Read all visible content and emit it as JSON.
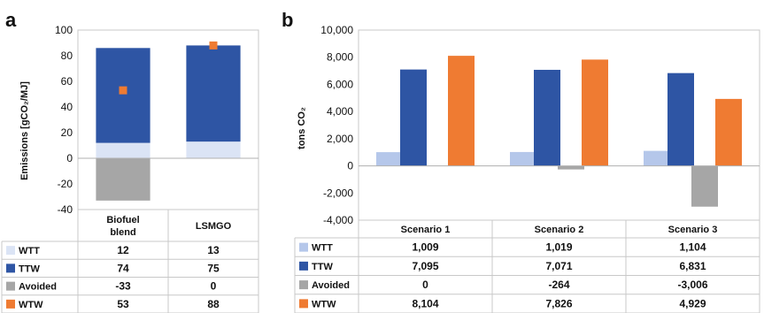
{
  "chart_data": [
    {
      "panel": "a",
      "type": "bar",
      "stacked": true,
      "ylabel": "Emissions [gCO₂/MJ]",
      "ylim": [
        -40,
        100
      ],
      "yticks": [
        -40,
        -20,
        0,
        20,
        40,
        60,
        80,
        100
      ],
      "ytick_labels": [
        "-40",
        "-20",
        "0",
        "20",
        "40",
        "60",
        "80",
        "100"
      ],
      "grid": false,
      "categories": [
        "Biofuel blend",
        "LSMGO"
      ],
      "category_lines": [
        [
          "Biofuel",
          "blend"
        ],
        [
          "LSMGO"
        ]
      ],
      "series": [
        {
          "name": "WTT",
          "kind": "bar",
          "color": "#dbe4f5",
          "values": [
            12,
            13
          ],
          "labels": [
            "12",
            "13"
          ]
        },
        {
          "name": "TTW",
          "kind": "bar",
          "color": "#2e55a4",
          "values": [
            74,
            75
          ],
          "labels": [
            "74",
            "75"
          ]
        },
        {
          "name": "Avoided",
          "kind": "bar",
          "color": "#a6a6a6",
          "values": [
            -33,
            0
          ],
          "labels": [
            "-33",
            "0"
          ]
        },
        {
          "name": "WTW",
          "kind": "marker",
          "color": "#ef7b32",
          "values": [
            53,
            88
          ],
          "labels": [
            "53",
            "88"
          ]
        }
      ]
    },
    {
      "panel": "b",
      "type": "bar",
      "stacked": false,
      "ylabel": "tons CO₂",
      "ylim": [
        -4000,
        10000
      ],
      "yticks": [
        -4000,
        -2000,
        0,
        2000,
        4000,
        6000,
        8000,
        10000
      ],
      "ytick_labels": [
        "-4,000",
        "-2,000",
        "0",
        "2,000",
        "4,000",
        "6,000",
        "8,000",
        "10,000"
      ],
      "grid": false,
      "categories": [
        "Scenario 1",
        "Scenario 2",
        "Scenario 3"
      ],
      "series": [
        {
          "name": "WTT",
          "color": "#b5c7ea",
          "values": [
            1009,
            1019,
            1104
          ],
          "labels": [
            "1,009",
            "1,019",
            "1,104"
          ]
        },
        {
          "name": "TTW",
          "color": "#2e55a4",
          "values": [
            7095,
            7071,
            6831
          ],
          "labels": [
            "7,095",
            "7,071",
            "6,831"
          ]
        },
        {
          "name": "Avoided",
          "color": "#a6a6a6",
          "values": [
            0,
            -264,
            -3006
          ],
          "labels": [
            "0",
            "-264",
            "-3,006"
          ]
        },
        {
          "name": "WTW",
          "color": "#ef7b32",
          "values": [
            8104,
            7826,
            4929
          ],
          "labels": [
            "8,104",
            "7,826",
            "4,929"
          ]
        }
      ]
    }
  ]
}
